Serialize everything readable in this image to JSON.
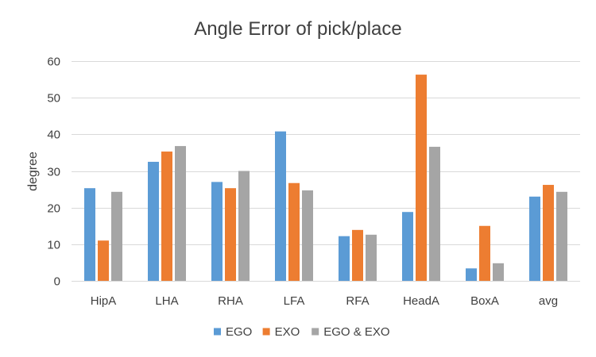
{
  "chart_data": {
    "type": "bar",
    "title": "Angle Error of pick/place",
    "xlabel": "",
    "ylabel": "degree",
    "ylim": [
      0,
      60
    ],
    "yticks": [
      0,
      10,
      20,
      30,
      40,
      50,
      60
    ],
    "grid": true,
    "legend_position": "bottom",
    "categories": [
      "HipA",
      "LHA",
      "RHA",
      "LFA",
      "RFA",
      "HeadA",
      "BoxA",
      "avg"
    ],
    "series": [
      {
        "name": "EGO",
        "color": "#5b9bd5",
        "values": [
          25.3,
          32.5,
          27.0,
          40.8,
          12.2,
          18.8,
          3.4,
          23.0
        ]
      },
      {
        "name": "EXO",
        "color": "#ed7d31",
        "values": [
          11.0,
          35.3,
          25.3,
          26.7,
          13.9,
          56.3,
          15.0,
          26.2
        ]
      },
      {
        "name": "EGO & EXO",
        "color": "#a5a5a5",
        "values": [
          24.3,
          36.8,
          30.0,
          24.7,
          12.6,
          36.6,
          4.8,
          24.3
        ]
      }
    ]
  }
}
